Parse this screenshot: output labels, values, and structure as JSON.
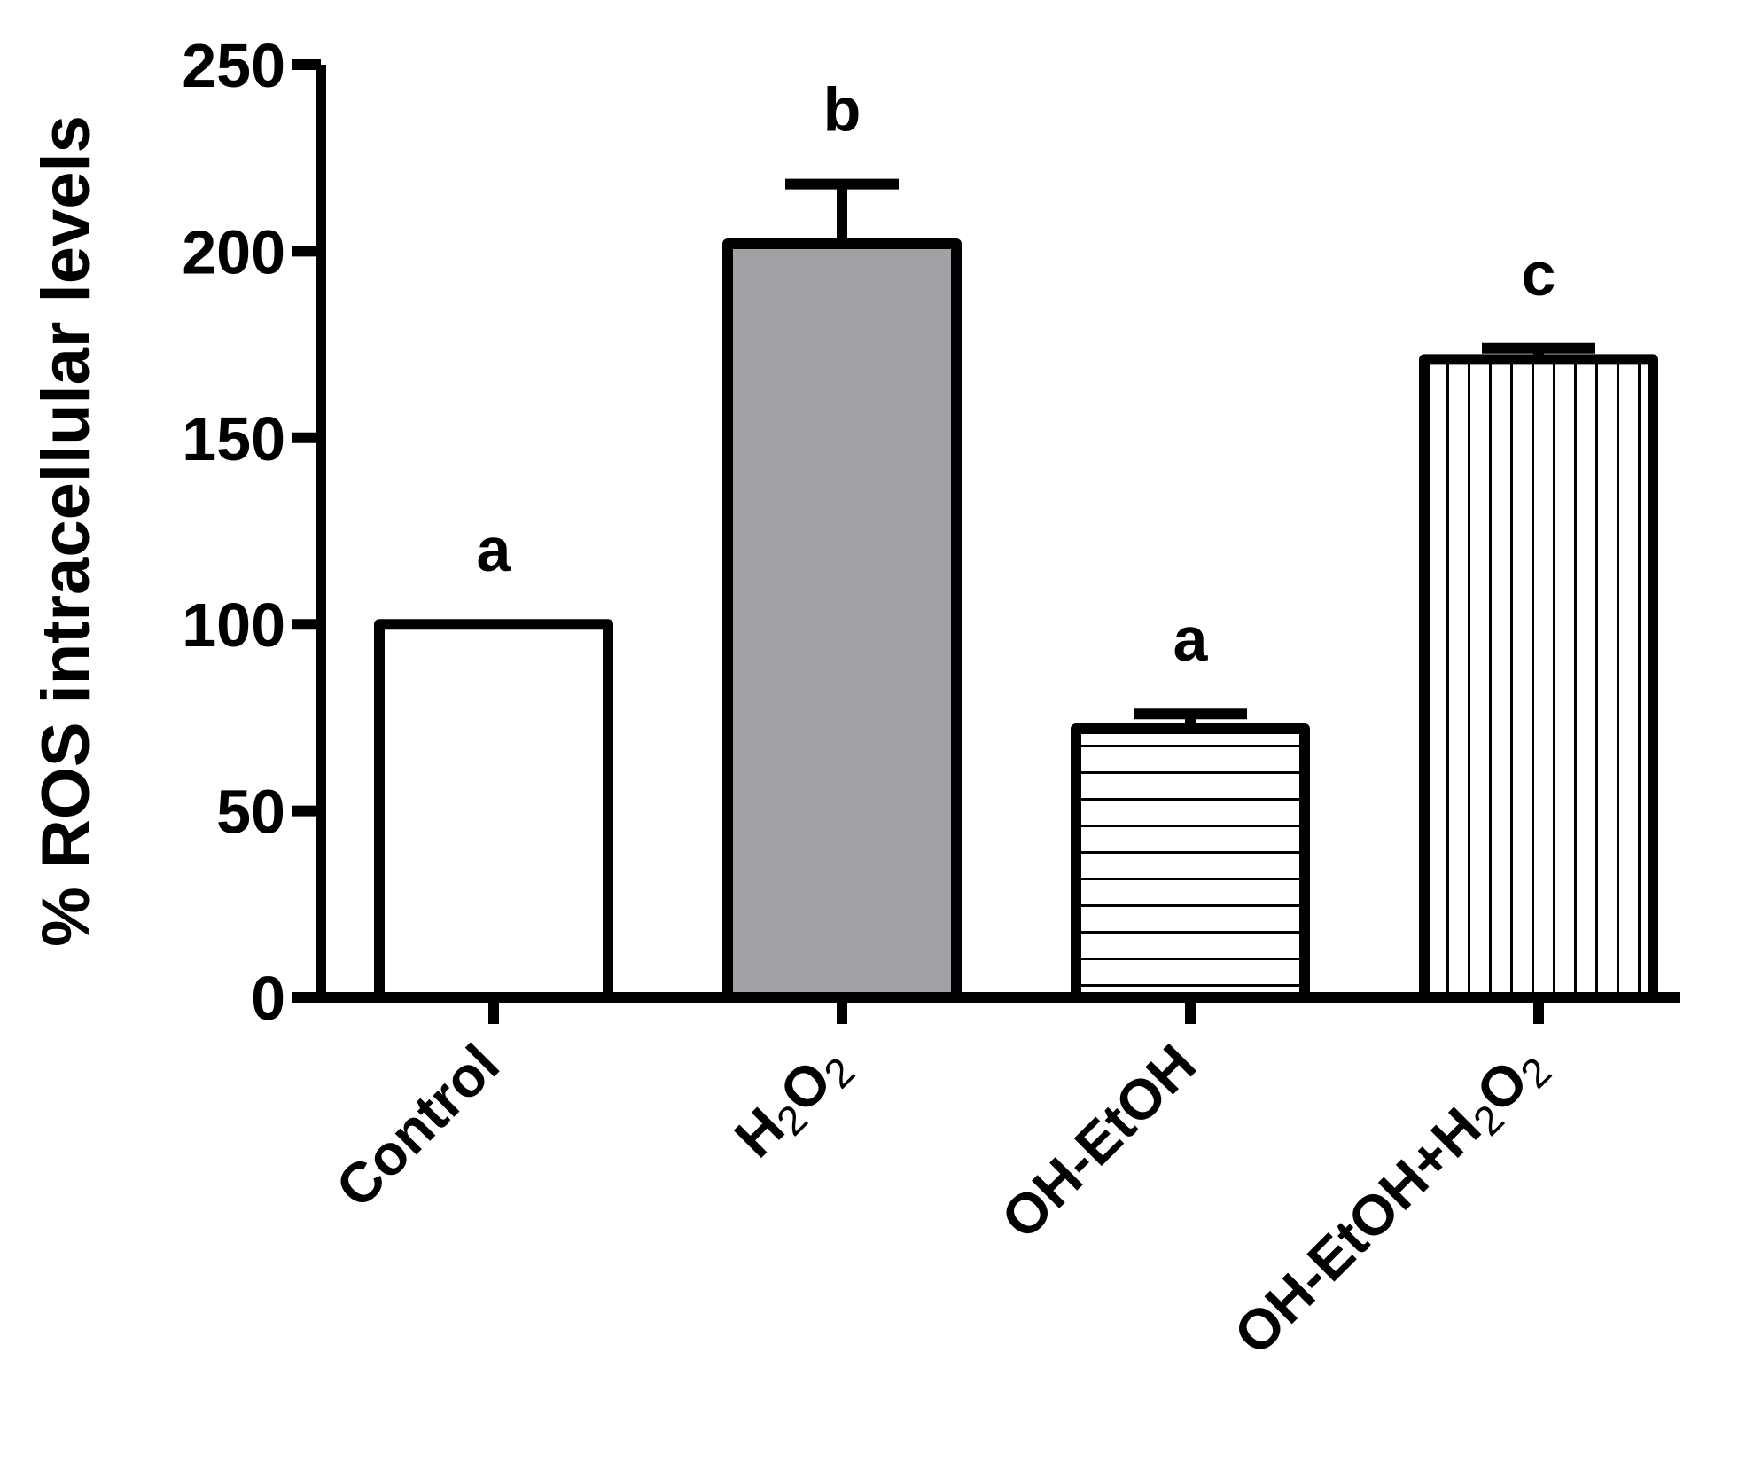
{
  "chart_data": {
    "type": "bar",
    "title": "",
    "xlabel": "",
    "ylabel": "% ROS intracellular levels",
    "ylim": [
      0,
      250
    ],
    "yticks": [
      0,
      50,
      100,
      150,
      200,
      250
    ],
    "grid": false,
    "legend": "none",
    "categories": [
      {
        "main": "Control",
        "parts": [
          {
            "t": "Control",
            "sub": false
          }
        ]
      },
      {
        "main": "H2O2",
        "parts": [
          {
            "t": "H",
            "sub": false
          },
          {
            "t": "2",
            "sub": true
          },
          {
            "t": "O",
            "sub": false
          },
          {
            "t": "2",
            "sub": true
          }
        ]
      },
      {
        "main": "OH-EtOH",
        "parts": [
          {
            "t": "OH-EtOH",
            "sub": false
          }
        ]
      },
      {
        "main": "OH-EtOH+H2O2",
        "parts": [
          {
            "t": "OH-EtOH+H",
            "sub": false
          },
          {
            "t": "2",
            "sub": true
          },
          {
            "t": "O",
            "sub": false
          },
          {
            "t": "2",
            "sub": true
          }
        ]
      }
    ],
    "values": [
      100,
      202,
      72,
      171
    ],
    "errors": [
      0,
      16,
      4,
      3
    ],
    "significance_letters": [
      "a",
      "b",
      "a",
      "c"
    ],
    "fills": [
      {
        "pattern": "none",
        "color": "#ffffff"
      },
      {
        "pattern": "solid",
        "color": "#a2a2a6"
      },
      {
        "pattern": "horizontal-lines",
        "color": "#ffffff"
      },
      {
        "pattern": "vertical-lines",
        "color": "#ffffff"
      }
    ],
    "stroke_color": "#000000"
  }
}
